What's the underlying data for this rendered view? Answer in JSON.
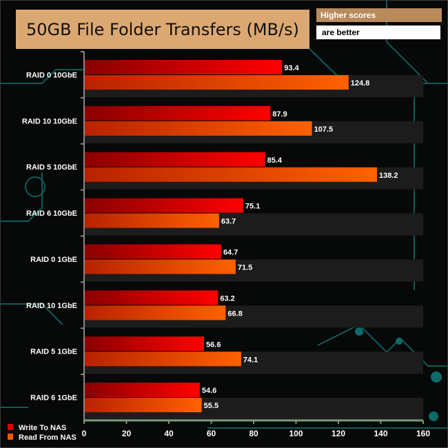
{
  "chart_data": {
    "type": "bar",
    "orientation": "horizontal",
    "title": "50GB File Folder Transfers (MB/s)",
    "note": [
      "Higher scores",
      "are better"
    ],
    "categories": [
      "RAID 0 10GbE",
      "RAID 10 10GbE",
      "RAID 5 10GbE",
      "RAID 6 10GbE",
      "RAID 0 1GbE",
      "RAID 10 1GbE",
      "RAID 5 1GbE",
      "RAID 6 1GbE"
    ],
    "series": [
      {
        "name": "Write To NAS",
        "color": "#e00000",
        "values": [
          93.4,
          87.9,
          85.4,
          75.1,
          64.7,
          63.2,
          56.6,
          54.6
        ]
      },
      {
        "name": "Read From NAS",
        "color": "#f25a00",
        "values": [
          124.8,
          107.5,
          138.2,
          63.7,
          71.5,
          66.8,
          74.1,
          55.5
        ]
      }
    ],
    "xlim": [
      0,
      160
    ],
    "xticks": [
      0,
      20,
      40,
      60,
      80,
      100,
      120,
      140,
      160
    ],
    "legend_position": "bottom-left",
    "grid": false
  }
}
